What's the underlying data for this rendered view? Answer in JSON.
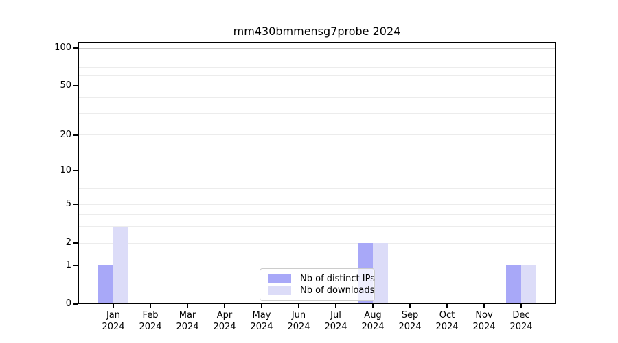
{
  "chart_data": {
    "type": "bar",
    "title": "mm430bmmensg7probe 2024",
    "categories": [
      "Jan",
      "Feb",
      "Mar",
      "Apr",
      "May",
      "Jun",
      "Jul",
      "Aug",
      "Sep",
      "Oct",
      "Nov",
      "Dec"
    ],
    "year_label": "2024",
    "series": [
      {
        "name": "Nb of distinct IPs",
        "color": "#a8a8f8",
        "values": [
          1,
          0,
          0,
          0,
          0,
          0,
          0,
          2,
          0,
          0,
          0,
          1
        ]
      },
      {
        "name": "Nb of downloads",
        "color": "#dcdcf8",
        "values": [
          3,
          0,
          0,
          0,
          0,
          0,
          0,
          2,
          0,
          0,
          0,
          1
        ]
      }
    ],
    "y_axis": {
      "scale": "log1p",
      "min": 0,
      "max": 112,
      "ticks": [
        {
          "value": 100,
          "label": "100"
        },
        {
          "value": 50,
          "label": "50"
        },
        {
          "value": 20,
          "label": "20"
        },
        {
          "value": 10,
          "label": "10"
        },
        {
          "value": 5,
          "label": "5"
        },
        {
          "value": 2,
          "label": "2"
        },
        {
          "value": 1,
          "label": "1"
        },
        {
          "value": 0,
          "label": "0"
        }
      ]
    },
    "grid": true,
    "legend_position": "inside-bottom-center",
    "colors": {
      "major_grid": "#c9c9c9",
      "minor_grid": "#ececec",
      "axis": "#000000"
    }
  }
}
